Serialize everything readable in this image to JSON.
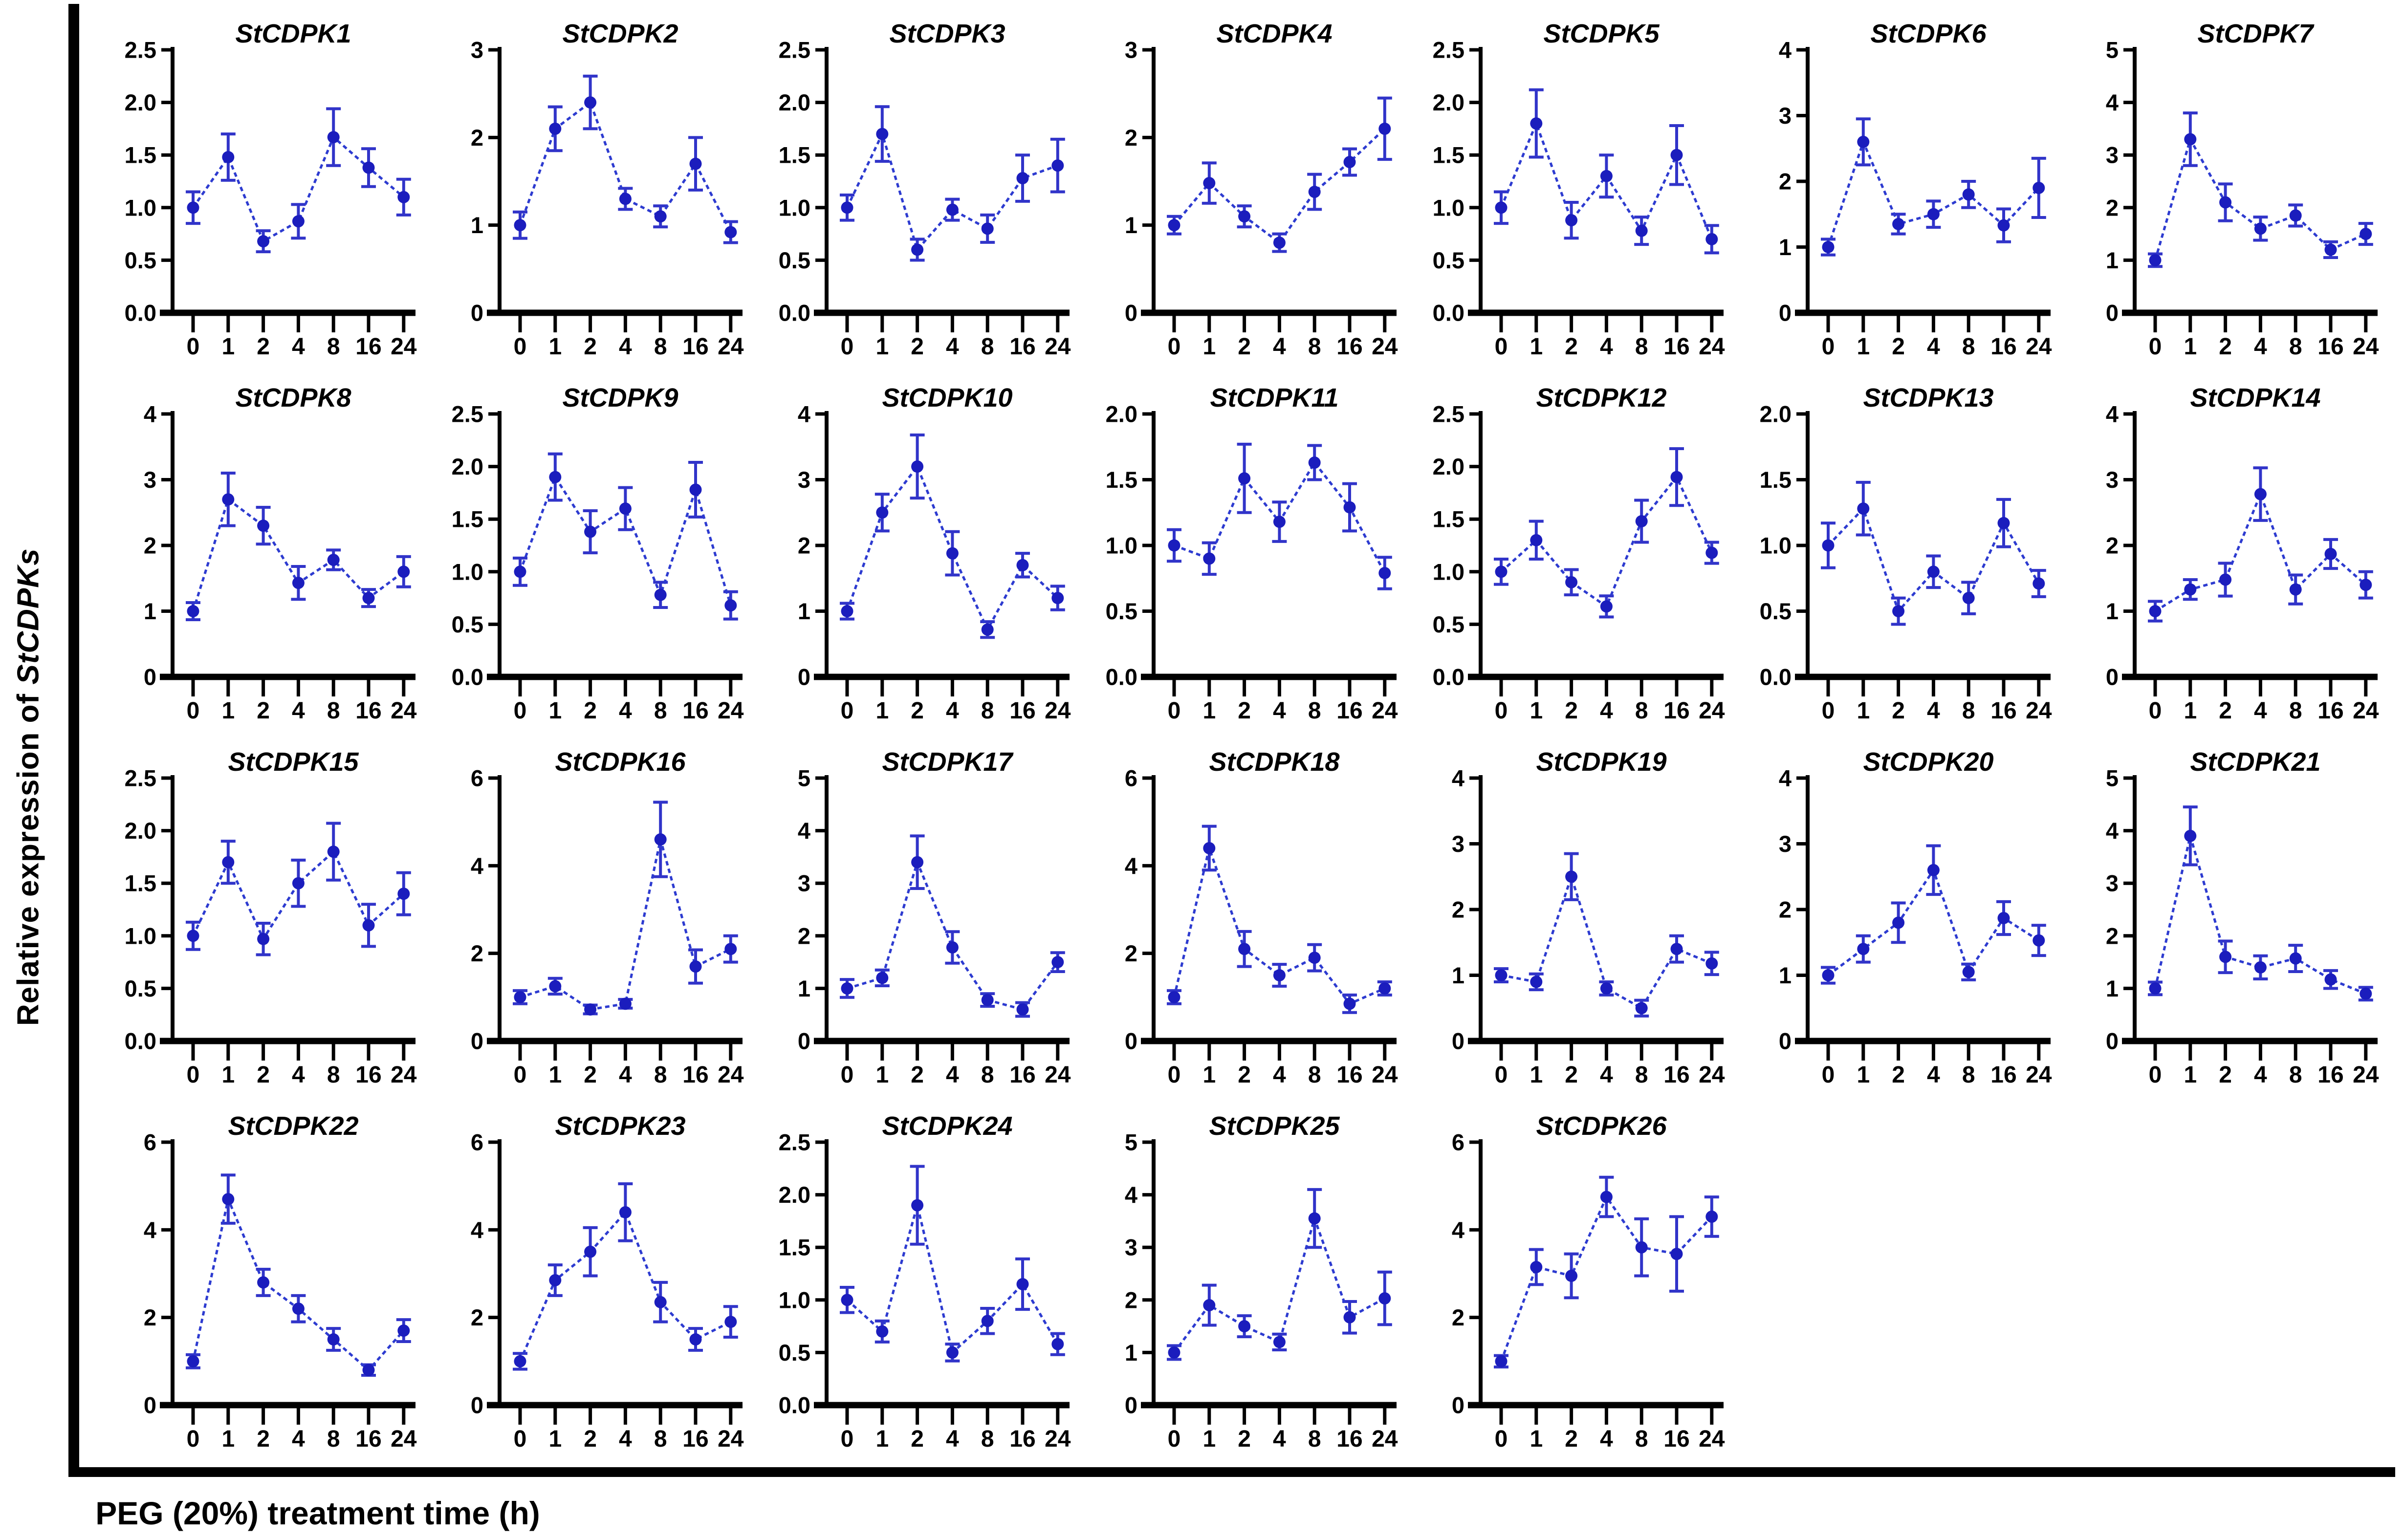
{
  "figure": {
    "y_axis_label_prefix": "Relative expression of ",
    "y_axis_label_gene": "StCDPKs",
    "x_axis_label": "PEG (20%) treatment time (h)",
    "colors": {
      "marker": "#1b1dbd",
      "line": "#2d3bd0",
      "error_bar": "#3134c9",
      "axis": "#000000",
      "background": "#ffffff"
    }
  },
  "chart_data": {
    "type": "line",
    "categories": [
      "0",
      "1",
      "2",
      "4",
      "8",
      "16",
      "24"
    ],
    "xlabel": "PEG (20%) treatment time (h)",
    "ylabel": "Relative expression of StCDPKs",
    "grid": false,
    "legend": "none",
    "marker_style": "filled-circle-with-error-bars",
    "panels": [
      {
        "title": "StCDPK1",
        "ymax": 2.5,
        "ystep": 0.5,
        "ydecimals": 1,
        "ylim": [
          0,
          2.5
        ],
        "values": [
          1.0,
          1.48,
          0.68,
          0.87,
          1.67,
          1.38,
          1.1
        ],
        "errors": [
          0.15,
          0.22,
          0.1,
          0.16,
          0.27,
          0.18,
          0.17
        ]
      },
      {
        "title": "StCDPK2",
        "ymax": 3,
        "ystep": 1,
        "ydecimals": 0,
        "ylim": [
          0,
          3
        ],
        "values": [
          1.0,
          2.1,
          2.4,
          1.3,
          1.1,
          1.7,
          0.92
        ],
        "errors": [
          0.15,
          0.25,
          0.3,
          0.12,
          0.12,
          0.3,
          0.12
        ]
      },
      {
        "title": "StCDPK3",
        "ymax": 2.5,
        "ystep": 0.5,
        "ydecimals": 1,
        "ylim": [
          0,
          2.5
        ],
        "values": [
          1.0,
          1.7,
          0.6,
          0.98,
          0.8,
          1.28,
          1.4
        ],
        "errors": [
          0.12,
          0.26,
          0.1,
          0.1,
          0.13,
          0.22,
          0.25
        ]
      },
      {
        "title": "StCDPK4",
        "ymax": 3,
        "ystep": 1,
        "ydecimals": 0,
        "ylim": [
          0,
          3
        ],
        "values": [
          1.0,
          1.48,
          1.1,
          0.8,
          1.38,
          1.72,
          2.1
        ],
        "errors": [
          0.1,
          0.23,
          0.12,
          0.1,
          0.2,
          0.15,
          0.35
        ]
      },
      {
        "title": "StCDPK5",
        "ymax": 2.5,
        "ystep": 0.5,
        "ydecimals": 1,
        "ylim": [
          0,
          2.5
        ],
        "values": [
          1.0,
          1.8,
          0.88,
          1.3,
          0.78,
          1.5,
          0.7
        ],
        "errors": [
          0.15,
          0.32,
          0.17,
          0.2,
          0.13,
          0.28,
          0.13
        ]
      },
      {
        "title": "StCDPK6",
        "ymax": 4,
        "ystep": 1,
        "ydecimals": 0,
        "ylim": [
          0,
          4
        ],
        "values": [
          1.0,
          2.6,
          1.35,
          1.5,
          1.8,
          1.33,
          1.9
        ],
        "errors": [
          0.12,
          0.35,
          0.15,
          0.2,
          0.2,
          0.25,
          0.45
        ]
      },
      {
        "title": "StCDPK7",
        "ymax": 5,
        "ystep": 1,
        "ydecimals": 0,
        "ylim": [
          0,
          5
        ],
        "values": [
          1.0,
          3.3,
          2.1,
          1.6,
          1.85,
          1.2,
          1.5
        ],
        "errors": [
          0.12,
          0.5,
          0.35,
          0.22,
          0.2,
          0.15,
          0.2
        ]
      },
      {
        "title": "StCDPK8",
        "ymax": 4,
        "ystep": 1,
        "ydecimals": 0,
        "ylim": [
          0,
          4
        ],
        "values": [
          1.0,
          2.7,
          2.3,
          1.43,
          1.78,
          1.2,
          1.6
        ],
        "errors": [
          0.13,
          0.4,
          0.28,
          0.25,
          0.15,
          0.13,
          0.23
        ]
      },
      {
        "title": "StCDPK9",
        "ymax": 2.5,
        "ystep": 0.5,
        "ydecimals": 1,
        "ylim": [
          0,
          2.5
        ],
        "values": [
          1.0,
          1.9,
          1.38,
          1.6,
          0.78,
          1.78,
          0.68
        ],
        "errors": [
          0.13,
          0.22,
          0.2,
          0.2,
          0.12,
          0.26,
          0.13
        ]
      },
      {
        "title": "StCDPK10",
        "ymax": 4,
        "ystep": 1,
        "ydecimals": 0,
        "ylim": [
          0,
          4
        ],
        "values": [
          1.0,
          2.5,
          3.2,
          1.88,
          0.72,
          1.7,
          1.2
        ],
        "errors": [
          0.12,
          0.28,
          0.48,
          0.33,
          0.12,
          0.18,
          0.18
        ]
      },
      {
        "title": "StCDPK11",
        "ymax": 2.0,
        "ystep": 0.5,
        "ydecimals": 1,
        "ylim": [
          0,
          2.0
        ],
        "values": [
          1.0,
          0.9,
          1.51,
          1.18,
          1.63,
          1.29,
          0.79
        ],
        "errors": [
          0.12,
          0.12,
          0.26,
          0.15,
          0.13,
          0.18,
          0.12
        ]
      },
      {
        "title": "StCDPK12",
        "ymax": 2.5,
        "ystep": 0.5,
        "ydecimals": 1,
        "ylim": [
          0,
          2.5
        ],
        "values": [
          1.0,
          1.3,
          0.9,
          0.67,
          1.48,
          1.9,
          1.18
        ],
        "errors": [
          0.12,
          0.18,
          0.12,
          0.1,
          0.2,
          0.27,
          0.1
        ]
      },
      {
        "title": "StCDPK13",
        "ymax": 2.0,
        "ystep": 0.5,
        "ydecimals": 1,
        "ylim": [
          0,
          2.0
        ],
        "values": [
          1.0,
          1.28,
          0.5,
          0.8,
          0.6,
          1.17,
          0.71
        ],
        "errors": [
          0.17,
          0.2,
          0.1,
          0.12,
          0.12,
          0.18,
          0.1
        ]
      },
      {
        "title": "StCDPK14",
        "ymax": 4,
        "ystep": 1,
        "ydecimals": 0,
        "ylim": [
          0,
          4
        ],
        "values": [
          1.0,
          1.33,
          1.48,
          2.78,
          1.33,
          1.87,
          1.4
        ],
        "errors": [
          0.15,
          0.15,
          0.25,
          0.4,
          0.22,
          0.22,
          0.2
        ]
      },
      {
        "title": "StCDPK15",
        "ymax": 2.5,
        "ystep": 0.5,
        "ydecimals": 1,
        "ylim": [
          0,
          2.5
        ],
        "values": [
          1.0,
          1.7,
          0.97,
          1.5,
          1.8,
          1.1,
          1.4
        ],
        "errors": [
          0.13,
          0.2,
          0.15,
          0.22,
          0.27,
          0.2,
          0.2
        ]
      },
      {
        "title": "StCDPK16",
        "ymax": 6,
        "ystep": 2,
        "ydecimals": 0,
        "ylim": [
          0,
          6
        ],
        "values": [
          1.0,
          1.25,
          0.72,
          0.85,
          4.6,
          1.7,
          2.1
        ],
        "errors": [
          0.15,
          0.18,
          0.1,
          0.1,
          0.85,
          0.38,
          0.3
        ]
      },
      {
        "title": "StCDPK17",
        "ymax": 5,
        "ystep": 1,
        "ydecimals": 0,
        "ylim": [
          0,
          5
        ],
        "values": [
          1.0,
          1.2,
          3.4,
          1.78,
          0.78,
          0.6,
          1.5
        ],
        "errors": [
          0.17,
          0.15,
          0.5,
          0.3,
          0.12,
          0.13,
          0.18
        ]
      },
      {
        "title": "StCDPK18",
        "ymax": 6,
        "ystep": 2,
        "ydecimals": 0,
        "ylim": [
          0,
          6
        ],
        "values": [
          1.0,
          4.4,
          2.1,
          1.5,
          1.9,
          0.85,
          1.2
        ],
        "errors": [
          0.15,
          0.5,
          0.4,
          0.25,
          0.3,
          0.2,
          0.15
        ]
      },
      {
        "title": "StCDPK19",
        "ymax": 4,
        "ystep": 1,
        "ydecimals": 0,
        "ylim": [
          0,
          4
        ],
        "values": [
          1.0,
          0.9,
          2.5,
          0.8,
          0.5,
          1.4,
          1.18
        ],
        "errors": [
          0.1,
          0.12,
          0.35,
          0.1,
          0.12,
          0.2,
          0.17
        ]
      },
      {
        "title": "StCDPK20",
        "ymax": 4,
        "ystep": 1,
        "ydecimals": 0,
        "ylim": [
          0,
          4
        ],
        "values": [
          1.0,
          1.4,
          1.8,
          2.6,
          1.05,
          1.87,
          1.53
        ],
        "errors": [
          0.12,
          0.2,
          0.3,
          0.37,
          0.12,
          0.25,
          0.23
        ]
      },
      {
        "title": "StCDPK21",
        "ymax": 5,
        "ystep": 1,
        "ydecimals": 0,
        "ylim": [
          0,
          5
        ],
        "values": [
          1.0,
          3.9,
          1.6,
          1.4,
          1.57,
          1.17,
          0.9
        ],
        "errors": [
          0.12,
          0.55,
          0.3,
          0.22,
          0.25,
          0.17,
          0.12
        ]
      },
      {
        "title": "StCDPK22",
        "ymax": 6,
        "ystep": 2,
        "ydecimals": 0,
        "ylim": [
          0,
          6
        ],
        "values": [
          1.0,
          4.7,
          2.8,
          2.2,
          1.5,
          0.8,
          1.7
        ],
        "errors": [
          0.15,
          0.55,
          0.3,
          0.3,
          0.25,
          0.12,
          0.25
        ]
      },
      {
        "title": "StCDPK23",
        "ymax": 6,
        "ystep": 2,
        "ydecimals": 0,
        "ylim": [
          0,
          6
        ],
        "values": [
          1.0,
          2.85,
          3.5,
          4.4,
          2.35,
          1.5,
          1.9
        ],
        "errors": [
          0.18,
          0.35,
          0.55,
          0.65,
          0.45,
          0.25,
          0.35
        ]
      },
      {
        "title": "StCDPK24",
        "ymax": 2.5,
        "ystep": 0.5,
        "ydecimals": 1,
        "ylim": [
          0,
          2.5
        ],
        "values": [
          1.0,
          0.7,
          1.9,
          0.5,
          0.8,
          1.15,
          0.58
        ],
        "errors": [
          0.12,
          0.1,
          0.37,
          0.08,
          0.12,
          0.24,
          0.1
        ]
      },
      {
        "title": "StCDPK25",
        "ymax": 5,
        "ystep": 1,
        "ydecimals": 0,
        "ylim": [
          0,
          5
        ],
        "values": [
          1.0,
          1.9,
          1.5,
          1.2,
          3.55,
          1.67,
          2.03
        ],
        "errors": [
          0.13,
          0.38,
          0.2,
          0.15,
          0.55,
          0.3,
          0.5
        ]
      },
      {
        "title": "StCDPK26",
        "ymax": 6,
        "ystep": 2,
        "ydecimals": 0,
        "ylim": [
          0,
          6
        ],
        "values": [
          1.0,
          3.15,
          2.95,
          4.75,
          3.6,
          3.45,
          4.3
        ],
        "errors": [
          0.13,
          0.4,
          0.5,
          0.45,
          0.65,
          0.85,
          0.45
        ]
      }
    ]
  }
}
